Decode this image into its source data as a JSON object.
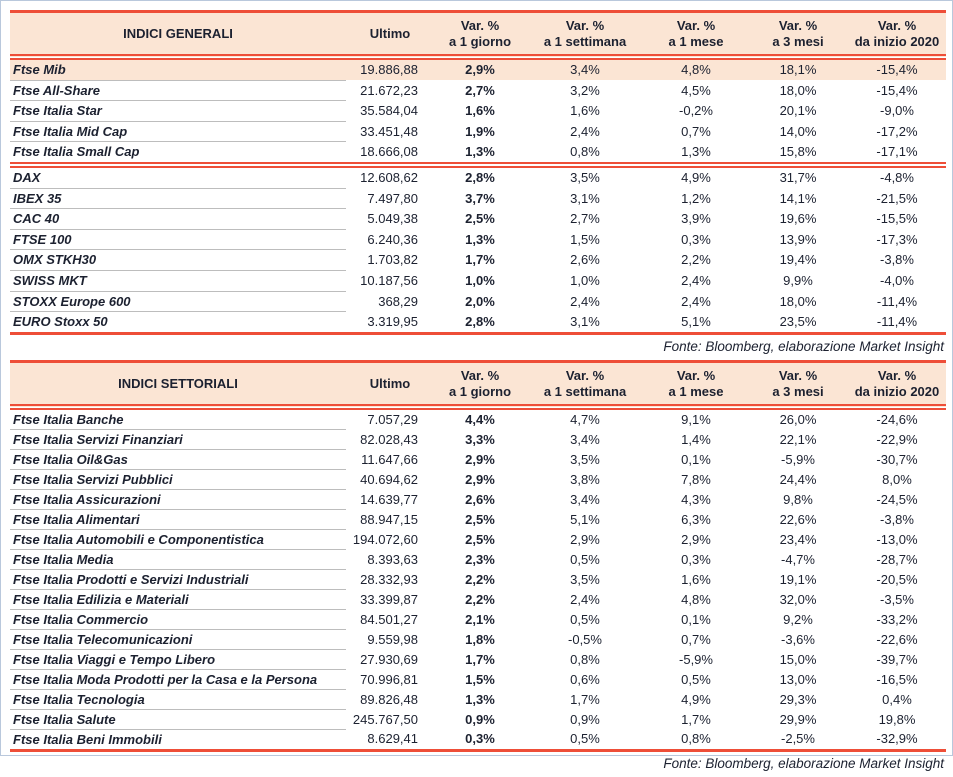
{
  "theme": {
    "accent_red": "#ee4e38",
    "header_bg": "#fbe5d4",
    "text_color": "#1c2130",
    "row_separator_gray": "#bdbdbd",
    "outer_border_blue": "#b9c8dc"
  },
  "tables": [
    {
      "title": "INDICI GENERALI",
      "col_ultimo": "Ultimo",
      "var_cols": [
        {
          "l1": "Var. %",
          "l2": "a 1 giorno"
        },
        {
          "l1": "Var. %",
          "l2": "a 1 settimana"
        },
        {
          "l1": "Var. %",
          "l2": "a 1 mese"
        },
        {
          "l1": "Var. %",
          "l2": "a 3 mesi"
        },
        {
          "l1": "Var. %",
          "l2": "da inizio 2020"
        }
      ],
      "rows": [
        {
          "name": "Ftse Mib",
          "values": [
            "19.886,88",
            "2,9%",
            "3,4%",
            "4,8%",
            "18,1%",
            "-15,4%"
          ],
          "highlight": true
        },
        {
          "name": "Ftse All-Share",
          "values": [
            "21.672,23",
            "2,7%",
            "3,2%",
            "4,5%",
            "18,0%",
            "-15,4%"
          ]
        },
        {
          "name": "Ftse Italia Star",
          "values": [
            "35.584,04",
            "1,6%",
            "1,6%",
            "-0,2%",
            "20,1%",
            "-9,0%"
          ]
        },
        {
          "name": "Ftse Italia Mid Cap",
          "values": [
            "33.451,48",
            "1,9%",
            "2,4%",
            "0,7%",
            "14,0%",
            "-17,2%"
          ]
        },
        {
          "name": "Ftse Italia Small Cap",
          "values": [
            "18.666,08",
            "1,3%",
            "0,8%",
            "1,3%",
            "15,8%",
            "-17,1%"
          ],
          "sep_after": true
        },
        {
          "name": "DAX",
          "values": [
            "12.608,62",
            "2,8%",
            "3,5%",
            "4,9%",
            "31,7%",
            "-4,8%"
          ]
        },
        {
          "name": "IBEX 35",
          "values": [
            "7.497,80",
            "3,7%",
            "3,1%",
            "1,2%",
            "14,1%",
            "-21,5%"
          ]
        },
        {
          "name": "CAC 40",
          "values": [
            "5.049,38",
            "2,5%",
            "2,7%",
            "3,9%",
            "19,6%",
            "-15,5%"
          ]
        },
        {
          "name": "FTSE 100",
          "values": [
            "6.240,36",
            "1,3%",
            "1,5%",
            "0,3%",
            "13,9%",
            "-17,3%"
          ]
        },
        {
          "name": "OMX STKH30",
          "values": [
            "1.703,82",
            "1,7%",
            "2,6%",
            "2,2%",
            "19,4%",
            "-3,8%"
          ]
        },
        {
          "name": "SWISS MKT",
          "values": [
            "10.187,56",
            "1,0%",
            "1,0%",
            "2,4%",
            "9,9%",
            "-4,0%"
          ]
        },
        {
          "name": "STOXX Europe 600",
          "values": [
            "368,29",
            "2,0%",
            "2,4%",
            "2,4%",
            "18,0%",
            "-11,4%"
          ]
        },
        {
          "name": "EURO Stoxx 50",
          "values": [
            "3.319,95",
            "2,8%",
            "3,1%",
            "5,1%",
            "23,5%",
            "-11,4%"
          ]
        }
      ],
      "source": "Fonte: Bloomberg, elaborazione Market Insight"
    },
    {
      "title": "INDICI SETTORIALI",
      "col_ultimo": "Ultimo",
      "var_cols": [
        {
          "l1": "Var. %",
          "l2": "a 1 giorno"
        },
        {
          "l1": "Var. %",
          "l2": "a 1 settimana"
        },
        {
          "l1": "Var. %",
          "l2": "a 1 mese"
        },
        {
          "l1": "Var. %",
          "l2": "a 3 mesi"
        },
        {
          "l1": "Var. %",
          "l2": "da inizio 2020"
        }
      ],
      "rows": [
        {
          "name": "Ftse Italia Banche",
          "values": [
            "7.057,29",
            "4,4%",
            "4,7%",
            "9,1%",
            "26,0%",
            "-24,6%"
          ]
        },
        {
          "name": "Ftse Italia Servizi Finanziari",
          "values": [
            "82.028,43",
            "3,3%",
            "3,4%",
            "1,4%",
            "22,1%",
            "-22,9%"
          ]
        },
        {
          "name": "Ftse Italia Oil&Gas",
          "values": [
            "11.647,66",
            "2,9%",
            "3,5%",
            "0,1%",
            "-5,9%",
            "-30,7%"
          ]
        },
        {
          "name": "Ftse Italia Servizi Pubblici",
          "values": [
            "40.694,62",
            "2,9%",
            "3,8%",
            "7,8%",
            "24,4%",
            "8,0%"
          ]
        },
        {
          "name": "Ftse Italia Assicurazioni",
          "values": [
            "14.639,77",
            "2,6%",
            "3,4%",
            "4,3%",
            "9,8%",
            "-24,5%"
          ]
        },
        {
          "name": "Ftse Italia Alimentari",
          "values": [
            "88.947,15",
            "2,5%",
            "5,1%",
            "6,3%",
            "22,6%",
            "-3,8%"
          ]
        },
        {
          "name": "Ftse Italia Automobili e Componentistica",
          "values": [
            "194.072,60",
            "2,5%",
            "2,9%",
            "2,9%",
            "23,4%",
            "-13,0%"
          ]
        },
        {
          "name": "Ftse Italia Media",
          "values": [
            "8.393,63",
            "2,3%",
            "0,5%",
            "0,3%",
            "-4,7%",
            "-28,7%"
          ]
        },
        {
          "name": "Ftse Italia Prodotti e Servizi Industriali",
          "values": [
            "28.332,93",
            "2,2%",
            "3,5%",
            "1,6%",
            "19,1%",
            "-20,5%"
          ]
        },
        {
          "name": "Ftse Italia Edilizia e Materiali",
          "values": [
            "33.399,87",
            "2,2%",
            "2,4%",
            "4,8%",
            "32,0%",
            "-3,5%"
          ]
        },
        {
          "name": "Ftse Italia Commercio",
          "values": [
            "84.501,27",
            "2,1%",
            "0,5%",
            "0,1%",
            "9,2%",
            "-33,2%"
          ]
        },
        {
          "name": "Ftse Italia Telecomunicazioni",
          "values": [
            "9.559,98",
            "1,8%",
            "-0,5%",
            "0,7%",
            "-3,6%",
            "-22,6%"
          ]
        },
        {
          "name": "Ftse Italia Viaggi e Tempo Libero",
          "values": [
            "27.930,69",
            "1,7%",
            "0,8%",
            "-5,9%",
            "15,0%",
            "-39,7%"
          ]
        },
        {
          "name": "Ftse Italia Moda Prodotti per la Casa e la Persona",
          "values": [
            "70.996,81",
            "1,5%",
            "0,6%",
            "0,5%",
            "13,0%",
            "-16,5%"
          ]
        },
        {
          "name": "Ftse Italia Tecnologia",
          "values": [
            "89.826,48",
            "1,3%",
            "1,7%",
            "4,9%",
            "29,3%",
            "0,4%"
          ]
        },
        {
          "name": "Ftse Italia Salute",
          "values": [
            "245.767,50",
            "0,9%",
            "0,9%",
            "1,7%",
            "29,9%",
            "19,8%"
          ]
        },
        {
          "name": "Ftse Italia Beni Immobili",
          "values": [
            "8.629,41",
            "0,3%",
            "0,5%",
            "0,8%",
            "-2,5%",
            "-32,9%"
          ]
        }
      ],
      "source": "Fonte: Bloomberg, elaborazione Market Insight"
    }
  ]
}
